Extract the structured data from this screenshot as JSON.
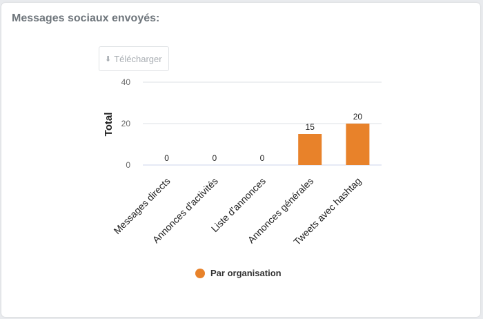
{
  "panel": {
    "title": "Messages sociaux envoyés:"
  },
  "toolbar": {
    "download_label": "Télécharger",
    "download_icon": "download-arrow-icon"
  },
  "colors": {
    "bar": "#e8822a",
    "grid": "#dde1e6",
    "baseline": "#ccd6eb",
    "axis_text": "#666666"
  },
  "chart_data": {
    "type": "bar",
    "title": "",
    "xlabel": "",
    "ylabel": "Total",
    "ylim": [
      0,
      40
    ],
    "yticks": [
      0,
      20,
      40
    ],
    "grid": true,
    "legend_position": "bottom-center",
    "categories": [
      "Messages directs",
      "Annonces d'activités",
      "Liste d'annonces",
      "Annonces générales",
      "Tweets avec hashtag"
    ],
    "series": [
      {
        "name": "Par organisation",
        "values": [
          0,
          0,
          0,
          15,
          20
        ]
      }
    ]
  }
}
